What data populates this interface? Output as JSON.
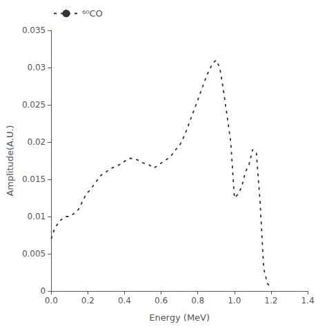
{
  "chart_data": {
    "type": "line",
    "xlabel": "Energy (MeV)",
    "ylabel": "Amplitude(A.U.)",
    "x": [
      0.0,
      0.02,
      0.05,
      0.08,
      0.1,
      0.13,
      0.15,
      0.17,
      0.19,
      0.21,
      0.24,
      0.27,
      0.3,
      0.33,
      0.36,
      0.39,
      0.42,
      0.45,
      0.48,
      0.5,
      0.53,
      0.56,
      0.59,
      0.62,
      0.65,
      0.68,
      0.7,
      0.73,
      0.76,
      0.79,
      0.82,
      0.85,
      0.88,
      0.9,
      0.92,
      0.94,
      0.96,
      0.98,
      1.0,
      1.02,
      1.04,
      1.06,
      1.08,
      1.1,
      1.12,
      1.14,
      1.16,
      1.18,
      1.2
    ],
    "series": [
      {
        "name": "⁶⁰CO",
        "color": "#333333",
        "line_style": "dashed",
        "values": [
          0.007,
          0.0085,
          0.0095,
          0.01,
          0.01,
          0.0105,
          0.011,
          0.012,
          0.013,
          0.0135,
          0.0145,
          0.0155,
          0.016,
          0.0165,
          0.0168,
          0.0172,
          0.0178,
          0.0178,
          0.0175,
          0.0172,
          0.017,
          0.0165,
          0.017,
          0.0175,
          0.018,
          0.019,
          0.0195,
          0.021,
          0.023,
          0.025,
          0.027,
          0.029,
          0.0305,
          0.031,
          0.03,
          0.027,
          0.0235,
          0.02,
          0.0125,
          0.013,
          0.014,
          0.016,
          0.017,
          0.019,
          0.0185,
          0.012,
          0.003,
          0.001,
          0.0005
        ]
      }
    ],
    "xlim": [
      0,
      1.4
    ],
    "ylim": [
      0,
      0.035
    ],
    "xticks": [
      {
        "value": 0,
        "label": "0.0"
      },
      0.2,
      0.4,
      0.6,
      0.8,
      {
        "value": 1.0,
        "label": "1.0"
      },
      1.2,
      1.4
    ],
    "yticks": [
      0,
      0.005,
      0.01,
      0.015,
      0.02,
      0.025,
      0.03,
      0.035
    ],
    "legend": "upper left",
    "grid": false
  }
}
